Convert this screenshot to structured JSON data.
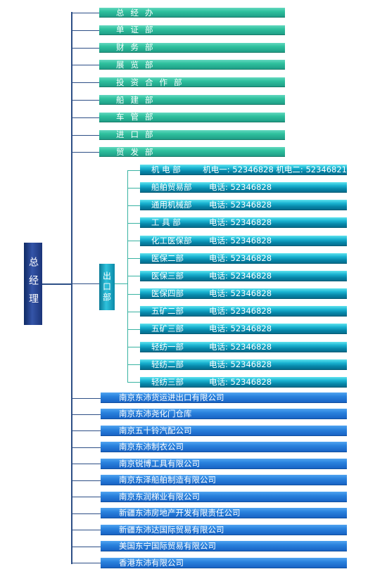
{
  "general_manager": "总经理",
  "departments": [
    "总经办",
    "单证部",
    "财务部",
    "展览部",
    "投资合作部",
    "船建部",
    "车管部",
    "进口部",
    "贸发部"
  ],
  "export_department": {
    "title": "出口部",
    "sub_departments": [
      {
        "name": "机 电 部",
        "phone": "机电一: 52346828  机电二: 52346821"
      },
      {
        "name": "船舶贸易部",
        "phone": "电话: 52346828"
      },
      {
        "name": "通用机械部",
        "phone": "电话: 52346828"
      },
      {
        "name": "工 具 部",
        "phone": "电话: 52346828"
      },
      {
        "name": "化工医保部",
        "phone": "电话: 52346828"
      },
      {
        "name": "医保二部",
        "phone": "电话: 52346828"
      },
      {
        "name": "医保三部",
        "phone": "电话: 52346828"
      },
      {
        "name": "医保四部",
        "phone": "电话: 52346828"
      },
      {
        "name": "五矿二部",
        "phone": "电话: 52346828"
      },
      {
        "name": "五矿三部",
        "phone": "电话: 52346828"
      },
      {
        "name": "轻纺一部",
        "phone": "电话: 52346828"
      },
      {
        "name": "轻纺二部",
        "phone": "电话: 52346828"
      },
      {
        "name": "轻纺三部",
        "phone": "电话: 52346828"
      }
    ]
  },
  "companies": [
    "南京东沛货运进出口有限公司",
    "南京东沛尧化门仓库",
    "南京五十铃汽配公司",
    "南京东沛制衣公司",
    "南京锐博工具有限公司",
    "南京东泽船舶制造有限公司",
    "南京东润梯业有限公司",
    "新疆东沛房地产开发有限责任公司",
    "新疆东沛达国际贸易有限公司",
    "美国东宁国际贸易有限公司",
    "香港东沛有限公司"
  ],
  "colors": {
    "line": "#2d4f86",
    "teal_line": "#39b3a2",
    "department_box": "#2ec19e",
    "export_box": "#0a8aa8",
    "company_box": "#2a82de",
    "manager_box": "#2a4a98"
  }
}
